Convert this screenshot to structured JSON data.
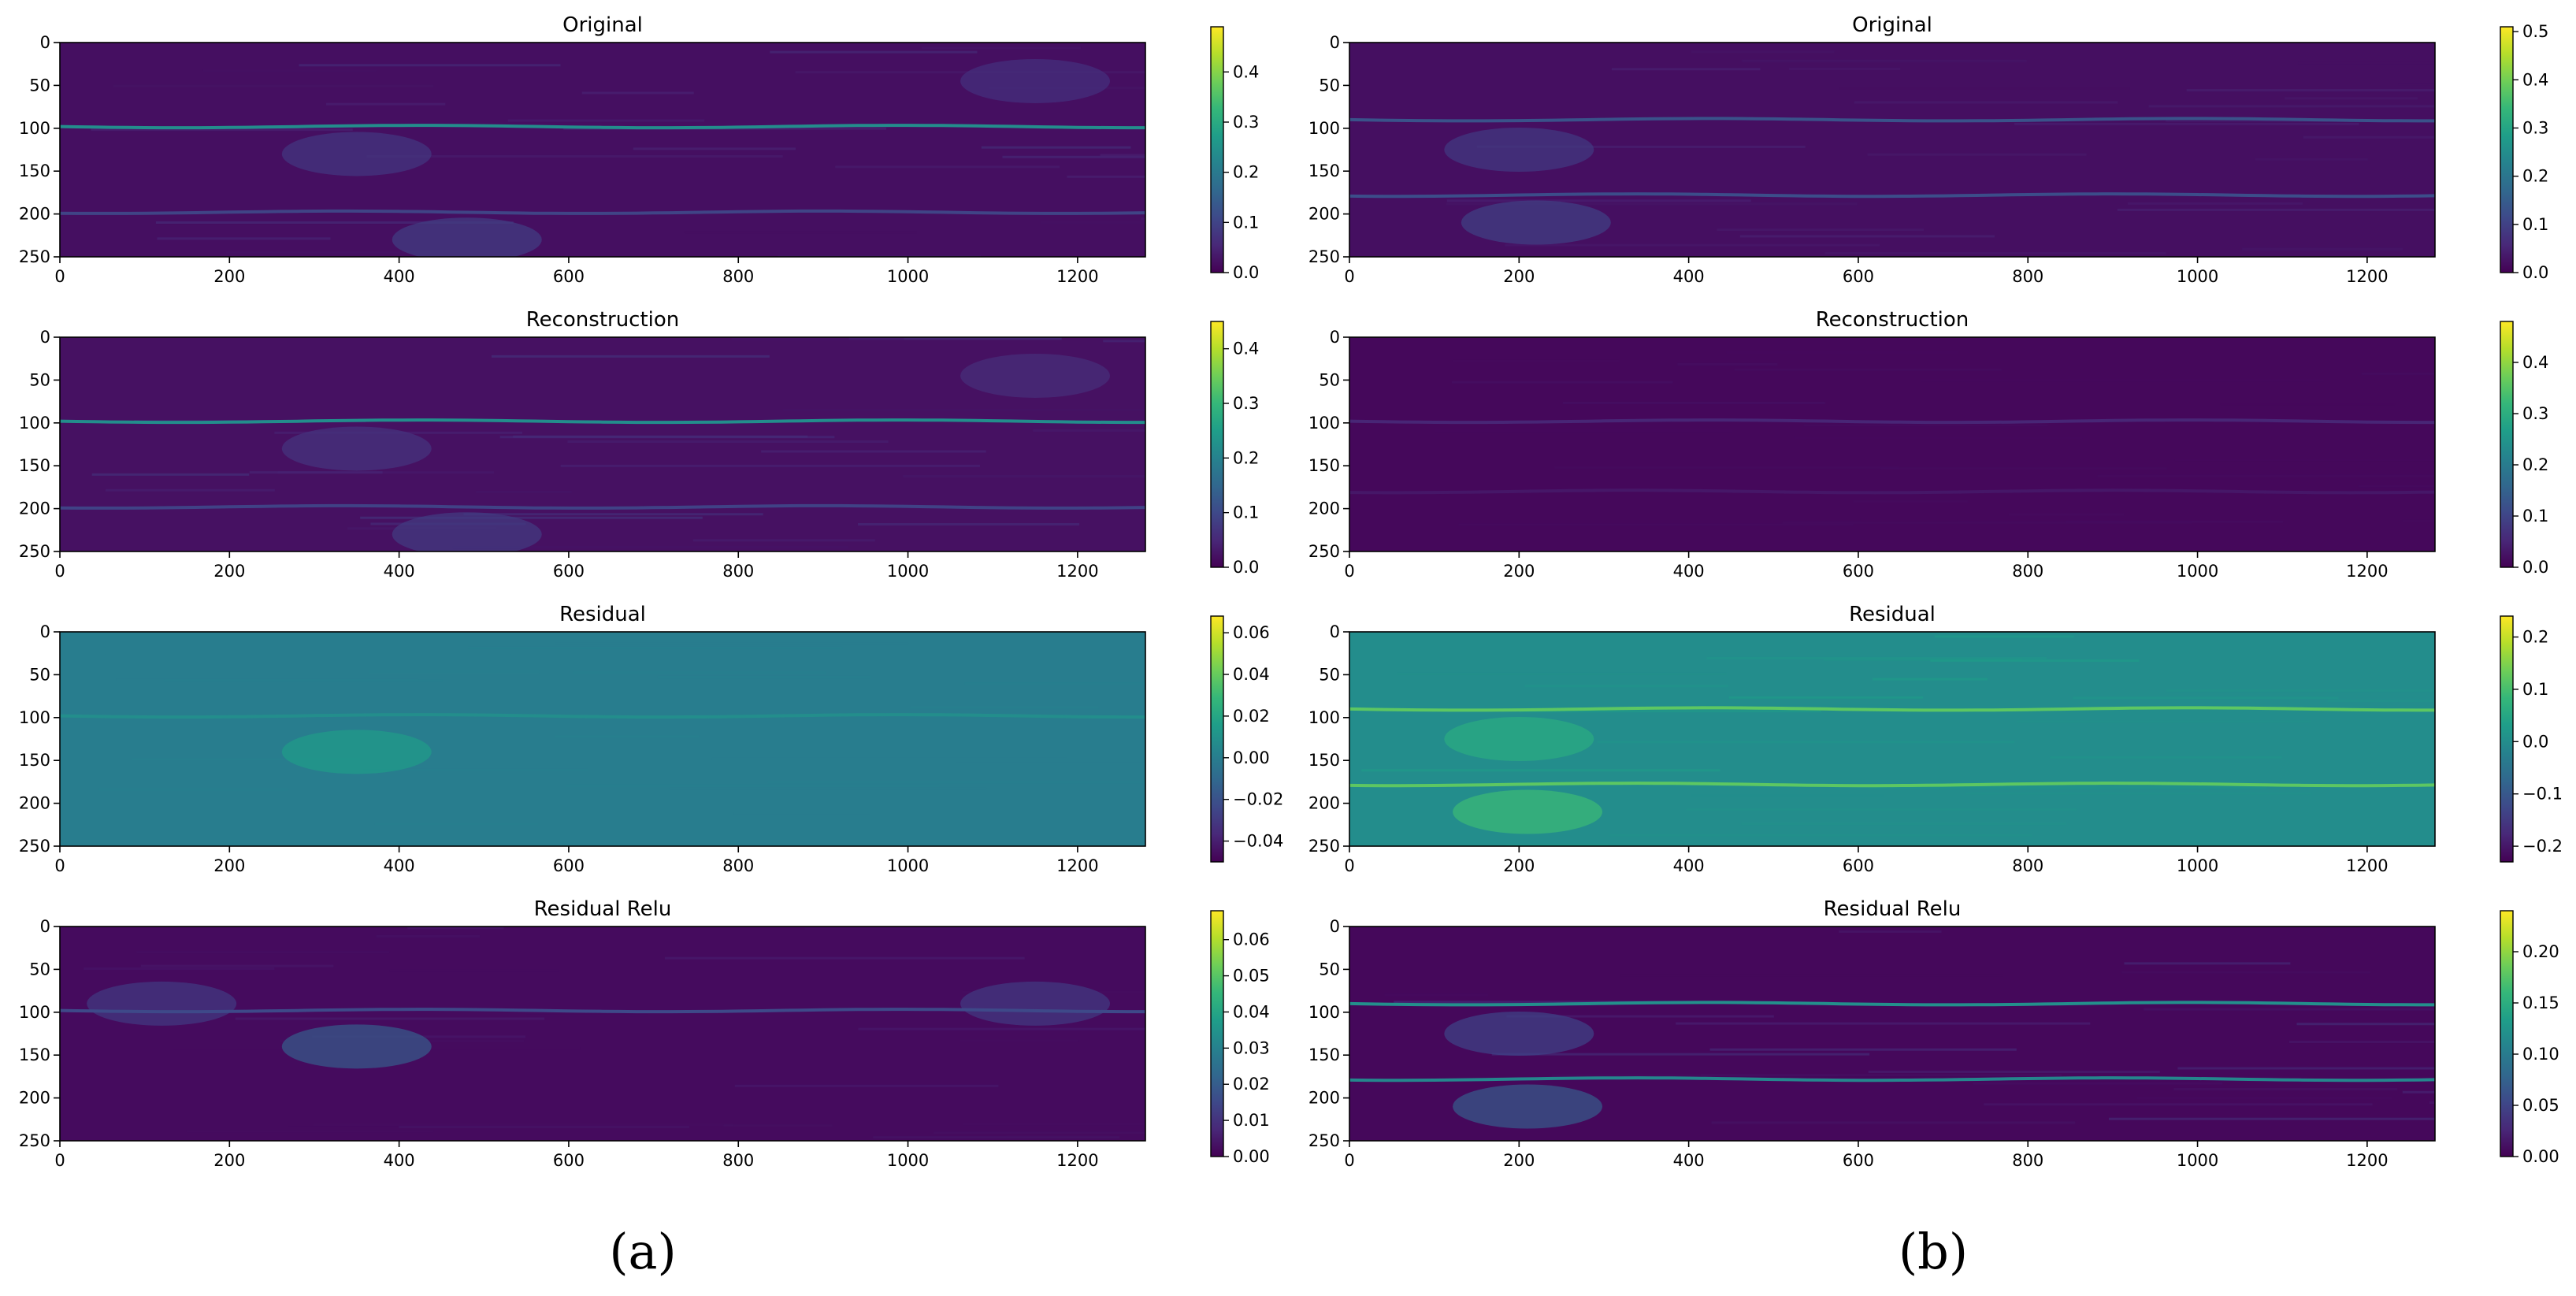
{
  "figure": {
    "panel_captions": [
      "(a)",
      "(b)"
    ]
  },
  "colormap": {
    "name": "viridis",
    "stops": [
      "#440154",
      "#482878",
      "#3e4989",
      "#31688e",
      "#26828e",
      "#1f9e89",
      "#35b779",
      "#6ece58",
      "#b5de2b",
      "#fde725"
    ]
  },
  "chart_data": [
    {
      "type": "heatmap",
      "panel": "a",
      "title": "Original",
      "xlim": [
        0,
        1280
      ],
      "ylim": [
        250,
        0
      ],
      "xticks": [
        0,
        200,
        400,
        600,
        800,
        1000,
        1200
      ],
      "yticks": [
        0,
        50,
        100,
        150,
        200,
        250
      ],
      "vmin": 0.0,
      "vmax": 0.49,
      "background_value": 0.02,
      "colorbar_ticks": [
        "0.0",
        "0.1",
        "0.2",
        "0.3",
        "0.4"
      ],
      "colorbar_tick_values": [
        0.0,
        0.1,
        0.2,
        0.3,
        0.4
      ],
      "bright_lines": [
        {
          "y": 98,
          "value": 0.24
        },
        {
          "y": 198,
          "value": 0.1
        }
      ],
      "bright_blobs": [
        {
          "x": 350,
          "y": 130,
          "value": 0.08
        },
        {
          "x": 480,
          "y": 230,
          "value": 0.09
        },
        {
          "x": 1150,
          "y": 45,
          "value": 0.07
        }
      ]
    },
    {
      "type": "heatmap",
      "panel": "b",
      "title": "Original",
      "xlim": [
        0,
        1280
      ],
      "ylim": [
        250,
        0
      ],
      "xticks": [
        0,
        200,
        400,
        600,
        800,
        1000,
        1200
      ],
      "yticks": [
        0,
        50,
        100,
        150,
        200,
        250
      ],
      "vmin": 0.0,
      "vmax": 0.51,
      "background_value": 0.02,
      "colorbar_ticks": [
        "0.0",
        "0.1",
        "0.2",
        "0.3",
        "0.4",
        "0.5"
      ],
      "colorbar_tick_values": [
        0.0,
        0.1,
        0.2,
        0.3,
        0.4,
        0.5
      ],
      "bright_lines": [
        {
          "y": 90,
          "value": 0.13
        },
        {
          "y": 178,
          "value": 0.12
        }
      ],
      "bright_blobs": [
        {
          "x": 200,
          "y": 125,
          "value": 0.09
        },
        {
          "x": 220,
          "y": 210,
          "value": 0.1
        }
      ]
    },
    {
      "type": "heatmap",
      "panel": "a",
      "title": "Reconstruction",
      "xlim": [
        0,
        1280
      ],
      "ylim": [
        250,
        0
      ],
      "xticks": [
        0,
        200,
        400,
        600,
        800,
        1000,
        1200
      ],
      "yticks": [
        0,
        50,
        100,
        150,
        200,
        250
      ],
      "vmin": 0.0,
      "vmax": 0.45,
      "background_value": 0.02,
      "colorbar_ticks": [
        "0.0",
        "0.1",
        "0.2",
        "0.3",
        "0.4"
      ],
      "colorbar_tick_values": [
        0.0,
        0.1,
        0.2,
        0.3,
        0.4
      ],
      "bright_lines": [
        {
          "y": 98,
          "value": 0.22
        },
        {
          "y": 198,
          "value": 0.09
        }
      ],
      "bright_blobs": [
        {
          "x": 350,
          "y": 130,
          "value": 0.07
        },
        {
          "x": 480,
          "y": 230,
          "value": 0.08
        },
        {
          "x": 1150,
          "y": 45,
          "value": 0.06
        }
      ]
    },
    {
      "type": "heatmap",
      "panel": "b",
      "title": "Reconstruction",
      "xlim": [
        0,
        1280
      ],
      "ylim": [
        250,
        0
      ],
      "xticks": [
        0,
        200,
        400,
        600,
        800,
        1000,
        1200
      ],
      "yticks": [
        0,
        50,
        100,
        150,
        200,
        250
      ],
      "vmin": 0.0,
      "vmax": 0.48,
      "background_value": 0.01,
      "colorbar_ticks": [
        "0.0",
        "0.1",
        "0.2",
        "0.3",
        "0.4"
      ],
      "colorbar_tick_values": [
        0.0,
        0.1,
        0.2,
        0.3,
        0.4
      ],
      "bright_lines": [
        {
          "y": 98,
          "value": 0.05
        },
        {
          "y": 180,
          "value": 0.03
        }
      ],
      "bright_blobs": []
    },
    {
      "type": "heatmap",
      "panel": "a",
      "title": "Residual",
      "xlim": [
        0,
        1280
      ],
      "ylim": [
        250,
        0
      ],
      "xticks": [
        0,
        200,
        400,
        600,
        800,
        1000,
        1200
      ],
      "yticks": [
        0,
        50,
        100,
        150,
        200,
        250
      ],
      "vmin": -0.05,
      "vmax": 0.068,
      "background_value": 0.0,
      "colorbar_ticks": [
        "0.06",
        "0.04",
        "0.02",
        "0.00",
        "−0.02",
        "−0.04"
      ],
      "colorbar_tick_values": [
        0.06,
        0.04,
        0.02,
        0.0,
        -0.02,
        -0.04
      ],
      "bright_lines": [
        {
          "y": 98,
          "value": 0.008
        }
      ],
      "bright_blobs": [
        {
          "x": 350,
          "y": 140,
          "value": 0.015
        }
      ]
    },
    {
      "type": "heatmap",
      "panel": "b",
      "title": "Residual",
      "xlim": [
        0,
        1280
      ],
      "ylim": [
        250,
        0
      ],
      "xticks": [
        0,
        200,
        400,
        600,
        800,
        1000,
        1200
      ],
      "yticks": [
        0,
        50,
        100,
        150,
        200,
        250
      ],
      "vmin": -0.23,
      "vmax": 0.24,
      "background_value": 0.0,
      "colorbar_ticks": [
        "0.2",
        "0.1",
        "0.0",
        "−0.1",
        "−0.2"
      ],
      "colorbar_tick_values": [
        0.2,
        0.1,
        0.0,
        -0.1,
        -0.2
      ],
      "bright_lines": [
        {
          "y": 90,
          "value": 0.12
        },
        {
          "y": 178,
          "value": 0.12
        }
      ],
      "bright_blobs": [
        {
          "x": 210,
          "y": 210,
          "value": 0.09
        },
        {
          "x": 200,
          "y": 125,
          "value": 0.06
        }
      ]
    },
    {
      "type": "heatmap",
      "panel": "a",
      "title": "Residual Relu",
      "xlim": [
        0,
        1280
      ],
      "ylim": [
        250,
        0
      ],
      "xticks": [
        0,
        200,
        400,
        600,
        800,
        1000,
        1200
      ],
      "yticks": [
        0,
        50,
        100,
        150,
        200,
        250
      ],
      "vmin": 0.0,
      "vmax": 0.068,
      "background_value": 0.002,
      "colorbar_ticks": [
        "0.00",
        "0.01",
        "0.02",
        "0.03",
        "0.04",
        "0.05",
        "0.06"
      ],
      "colorbar_tick_values": [
        0.0,
        0.01,
        0.02,
        0.03,
        0.04,
        0.05,
        0.06
      ],
      "bright_lines": [
        {
          "y": 98,
          "value": 0.015
        }
      ],
      "bright_blobs": [
        {
          "x": 350,
          "y": 140,
          "value": 0.02
        },
        {
          "x": 120,
          "y": 90,
          "value": 0.012
        },
        {
          "x": 1150,
          "y": 90,
          "value": 0.012
        }
      ]
    },
    {
      "type": "heatmap",
      "panel": "b",
      "title": "Residual Relu",
      "xlim": [
        0,
        1280
      ],
      "ylim": [
        250,
        0
      ],
      "xticks": [
        0,
        200,
        400,
        600,
        800,
        1000,
        1200
      ],
      "yticks": [
        0,
        50,
        100,
        150,
        200,
        250
      ],
      "vmin": 0.0,
      "vmax": 0.24,
      "background_value": 0.005,
      "colorbar_ticks": [
        "0.00",
        "0.05",
        "0.10",
        "0.15",
        "0.20"
      ],
      "colorbar_tick_values": [
        0.0,
        0.05,
        0.1,
        0.15,
        0.2
      ],
      "bright_lines": [
        {
          "y": 90,
          "value": 0.12
        },
        {
          "y": 178,
          "value": 0.11
        }
      ],
      "bright_blobs": [
        {
          "x": 210,
          "y": 210,
          "value": 0.07
        },
        {
          "x": 200,
          "y": 125,
          "value": 0.05
        }
      ]
    }
  ]
}
